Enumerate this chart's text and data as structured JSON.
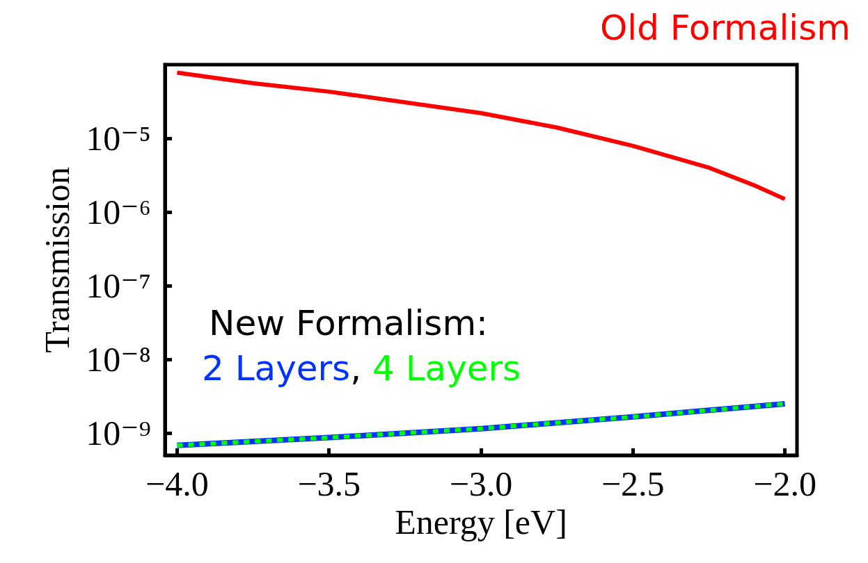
{
  "chart_data": {
    "type": "line",
    "xlabel": "Energy [eV]",
    "ylabel": "Transmission",
    "annotations": [
      "New Formalism:",
      ","
    ],
    "series": [
      {
        "name": "Old Formalism",
        "color": "#ff0000",
        "line_style": "solid",
        "x": [
          -4.0,
          -3.75,
          -3.5,
          -3.0,
          -2.75,
          -2.5,
          -2.25,
          -2.1,
          -2.0
        ],
        "values": [
          7.8e-05,
          5.6e-05,
          4.3e-05,
          2.2e-05,
          1.4e-05,
          7.9e-06,
          4e-06,
          2.3e-06,
          1.5e-06
        ]
      },
      {
        "name": "2 Layers",
        "color": "#0033ff",
        "line_style": "solid",
        "x": [
          -4.0,
          -3.5,
          -3.0,
          -2.5,
          -2.0
        ],
        "values": [
          6.8e-10,
          8.7e-10,
          1.15e-09,
          1.66e-09,
          2.5e-09
        ]
      },
      {
        "name": "4 Layers",
        "color": "#00ff00",
        "line_style": "dashed",
        "x": [
          -4.0,
          -3.5,
          -3.0,
          -2.5,
          -2.0
        ],
        "values": [
          6.8e-10,
          8.7e-10,
          1.15e-09,
          1.66e-09,
          2.5e-09
        ]
      }
    ],
    "log": "y",
    "grid": false,
    "legend": false,
    "marker": "none",
    "xlim": [
      -4.04,
      -1.96
    ],
    "xticks": [
      {
        "value": -4.0,
        "label": "−4.0"
      },
      {
        "value": -3.5,
        "label": "−3.5"
      },
      {
        "value": -3.0,
        "label": "−3.0"
      },
      {
        "value": -2.5,
        "label": "−2.5"
      },
      {
        "value": -2.0,
        "label": "−2.0"
      }
    ],
    "ylim": [
      5e-10,
      0.0001
    ],
    "yticks": [
      {
        "value": 1e-09,
        "label": "10⁻⁹"
      },
      {
        "value": 1e-08,
        "label": "10⁻⁸"
      },
      {
        "value": 1e-07,
        "label": "10⁻⁷"
      },
      {
        "value": 1e-06,
        "label": "10⁻⁶"
      },
      {
        "value": 1e-05,
        "label": "10⁻⁵"
      }
    ]
  }
}
